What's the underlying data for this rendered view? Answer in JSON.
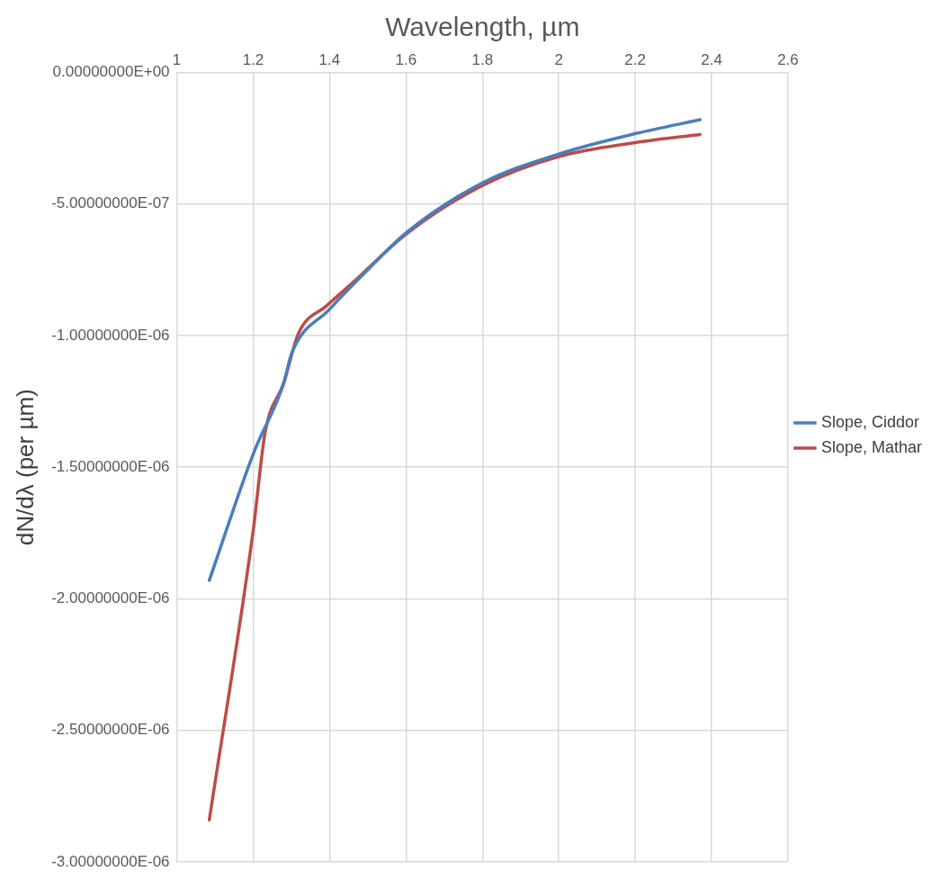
{
  "chart_data": {
    "type": "line",
    "xlabel": "Wavelength, µm",
    "ylabel": "dN/dλ (per µm)",
    "xlim": [
      1,
      2.6
    ],
    "xticks": [
      1,
      1.2,
      1.4,
      1.6,
      1.8,
      2,
      2.2,
      2.4,
      2.6
    ],
    "ylim": [
      -3e-06,
      0
    ],
    "yticks": [
      {
        "value": 0,
        "label": "0.00000000E+00"
      },
      {
        "value": -5e-07,
        "label": "-5.00000000E-07"
      },
      {
        "value": -1e-06,
        "label": "-1.00000000E-06"
      },
      {
        "value": -1.5e-06,
        "label": "-1.50000000E-06"
      },
      {
        "value": -2e-06,
        "label": "-2.00000000E-06"
      },
      {
        "value": -2.5e-06,
        "label": "-2.50000000E-06"
      },
      {
        "value": -3e-06,
        "label": "-3.00000000E-06"
      }
    ],
    "grid": true,
    "legend": "right",
    "marker": "none",
    "line_style": "solid",
    "series": [
      {
        "name": "Slope, Ciddor",
        "color": "#4a7ebb",
        "x": [
          1.085,
          1.2,
          1.28,
          1.3,
          1.4,
          1.5,
          1.6,
          1.8,
          2,
          2.2,
          2.37
        ],
        "values": [
          -1.93e-06,
          -1.45e-06,
          -1.18e-06,
          -1.07e-06,
          -9e-07,
          -7.5e-07,
          -6.1e-07,
          -4.2e-07,
          -3.1e-07,
          -2.33e-07,
          -1.8e-07
        ]
      },
      {
        "name": "Slope, Mathar",
        "color": "#be4b48",
        "x": [
          1.085,
          1.2,
          1.231,
          1.28,
          1.319,
          1.392,
          1.46,
          1.6,
          1.8,
          2,
          2.2,
          2.37
        ],
        "values": [
          -2.84e-06,
          -1.74e-06,
          -1.37e-06,
          -1.18e-06,
          -9.9e-07,
          -8.87e-07,
          -8e-07,
          -6.15e-07,
          -4.3e-07,
          -3.2e-07,
          -2.67e-07,
          -2.36e-07
        ]
      }
    ]
  }
}
